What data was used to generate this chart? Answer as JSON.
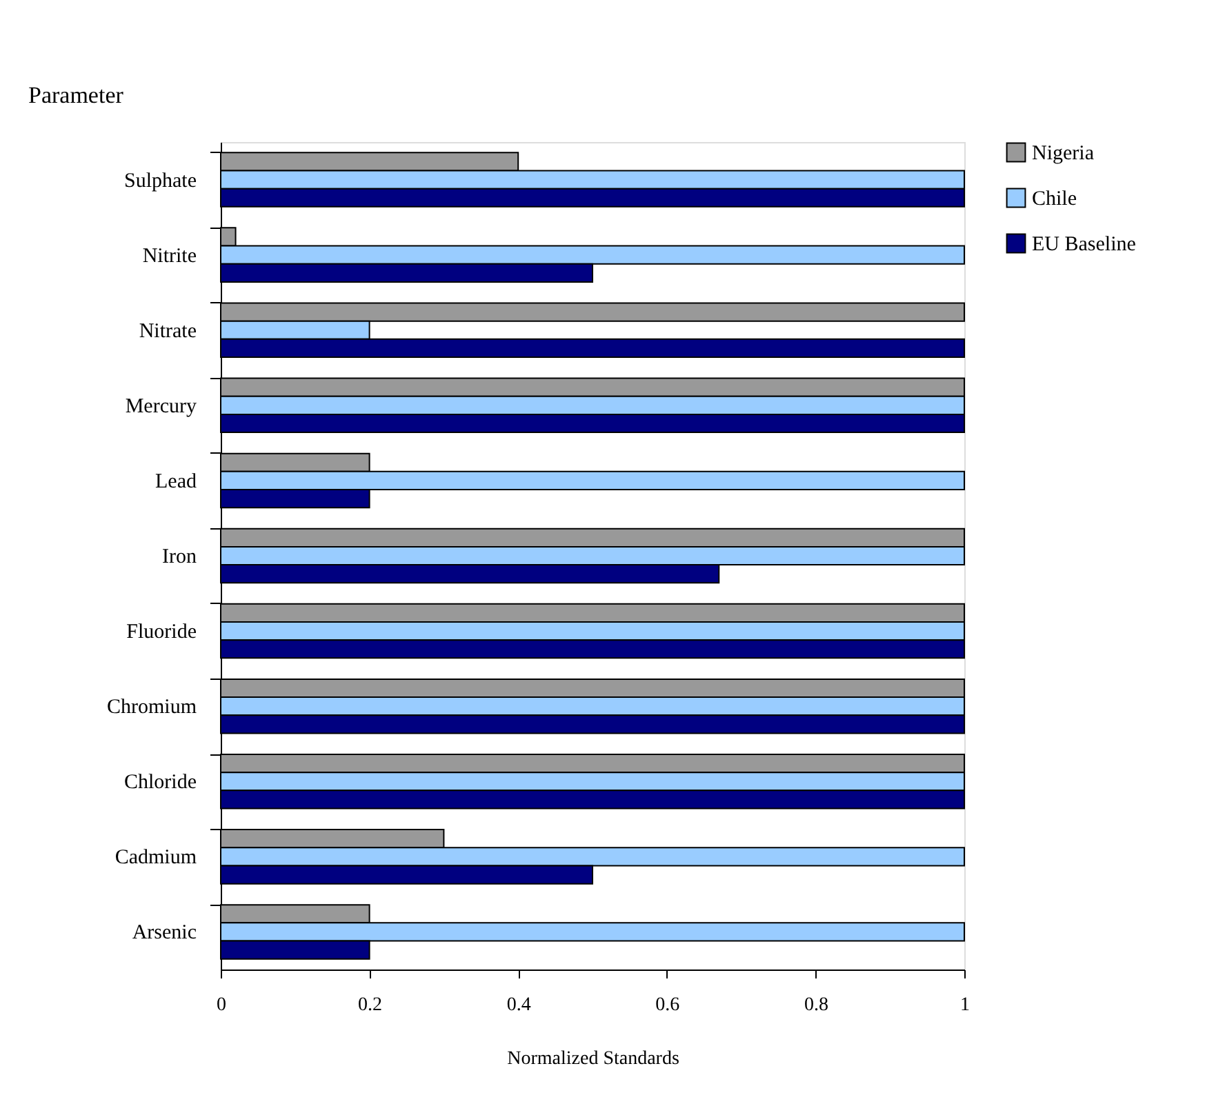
{
  "chart_data": {
    "type": "bar",
    "orientation": "horizontal",
    "ylabel": "Parameter",
    "xlabel": "Normalized Standards",
    "categories": [
      "Sulphate",
      "Nitrite",
      "Nitrate",
      "Mercury",
      "Lead",
      "Iron",
      "Fluoride",
      "Chromium",
      "Chloride",
      "Cadmium",
      "Arsenic"
    ],
    "series": [
      {
        "name": "Nigeria",
        "color": "#999999",
        "values": [
          0.4,
          0.02,
          1,
          1,
          0.2,
          1,
          1,
          1,
          1,
          0.3,
          0.2
        ]
      },
      {
        "name": "Chile",
        "color": "#99ccff",
        "values": [
          1,
          1,
          0.2,
          1,
          1,
          1,
          1,
          1,
          1,
          1,
          1
        ]
      },
      {
        "name": "EU Baseline",
        "color": "#000080",
        "values": [
          1,
          0.5,
          1,
          1,
          0.2,
          0.67,
          1,
          1,
          1,
          0.5,
          0.2
        ]
      }
    ],
    "xlim": [
      0,
      1
    ],
    "xticks": [
      0,
      0.2,
      0.4,
      0.6,
      0.8,
      1
    ],
    "grid": false,
    "legend": "right"
  }
}
